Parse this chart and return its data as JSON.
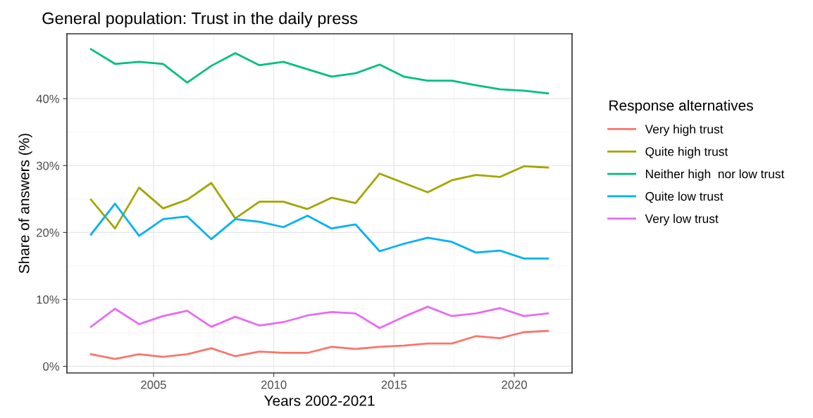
{
  "chart_data": {
    "type": "line",
    "title": "General population: Trust in the daily press",
    "xlabel": "Years 2002-2021",
    "ylabel": "Share of answers (%)",
    "legend_title": "Response alternatives",
    "x": [
      2002.4,
      2003.4,
      2004.4,
      2005.4,
      2006.4,
      2007.4,
      2008.4,
      2009.4,
      2010.4,
      2011.4,
      2012.4,
      2013.4,
      2014.4,
      2015.4,
      2016.4,
      2017.4,
      2018.4,
      2019.4,
      2020.4,
      2021.4
    ],
    "series": [
      {
        "name": "Very high trust",
        "color": "#f8766d",
        "values": [
          1.8,
          1.1,
          1.8,
          1.4,
          1.8,
          2.7,
          1.5,
          2.2,
          2.0,
          2.0,
          2.9,
          2.6,
          2.9,
          3.1,
          3.4,
          3.4,
          4.5,
          4.2,
          5.1,
          5.3
        ]
      },
      {
        "name": "Quite high trust",
        "color": "#a3a500",
        "values": [
          24.9,
          20.6,
          26.7,
          23.6,
          24.9,
          27.4,
          22.1,
          24.6,
          24.6,
          23.5,
          25.2,
          24.4,
          28.8,
          27.4,
          26.0,
          27.8,
          28.6,
          28.3,
          29.9,
          29.7
        ]
      },
      {
        "name": "Neither high  nor low trust",
        "color": "#00bf7d",
        "values": [
          47.4,
          45.2,
          45.5,
          45.2,
          42.4,
          44.9,
          46.8,
          45.0,
          45.5,
          44.4,
          43.3,
          43.8,
          45.1,
          43.3,
          42.7,
          42.7,
          42.0,
          41.4,
          41.2,
          40.8
        ]
      },
      {
        "name": "Quite low trust",
        "color": "#00b0f6",
        "values": [
          19.7,
          24.3,
          19.5,
          22.0,
          22.4,
          19.0,
          22.0,
          21.6,
          20.8,
          22.5,
          20.6,
          21.2,
          17.2,
          18.3,
          19.2,
          18.6,
          17.0,
          17.3,
          16.1,
          16.1
        ]
      },
      {
        "name": "Very low trust",
        "color": "#e76bf3",
        "values": [
          5.9,
          8.6,
          6.3,
          7.5,
          8.3,
          5.9,
          7.4,
          6.1,
          6.6,
          7.6,
          8.1,
          7.9,
          5.7,
          7.4,
          8.9,
          7.5,
          7.9,
          8.7,
          7.5,
          7.9
        ]
      }
    ],
    "xlim": [
      2001.4,
      2022.4
    ],
    "xticks": [
      2005,
      2010,
      2015,
      2020
    ],
    "ylim": [
      -1.0,
      49.7
    ],
    "yticks": [
      {
        "value": 0,
        "label": "0%"
      },
      {
        "value": 10,
        "label": "10%"
      },
      {
        "value": 20,
        "label": "20%"
      },
      {
        "value": 30,
        "label": "30%"
      },
      {
        "value": 40,
        "label": "40%"
      }
    ],
    "grid": true,
    "legend": "right",
    "marker": "none",
    "line_style": "solid"
  }
}
